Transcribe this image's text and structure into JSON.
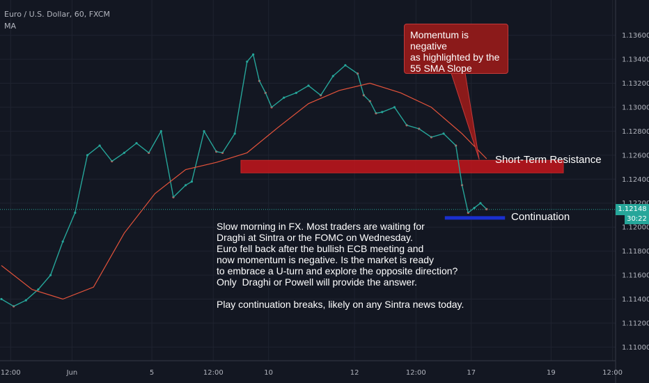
{
  "header": {
    "symbol": "Euro / U.S. Dollar, 60, FXCM",
    "indicator": "MA"
  },
  "current_price": "1.12148",
  "countdown": "30:22",
  "callout": {
    "line1": "Momentum is negative",
    "line2": "as highlighted by the",
    "line3": "55 SMA Slope"
  },
  "labels": {
    "resistance": "Short-Term Resistance",
    "continuation": "Continuation"
  },
  "commentary": "Slow morning in FX. Most traders are waiting for\nDraghi at Sintra or the FOMC on Wednesday.\nEuro fell back after the bullish ECB meeting and\nnow momentum is negative. Is the market is ready\nto embrace a U-turn and explore the opposite direction?\nOnly  Draghi or Powell will provide the answer.\n\nPlay continuation breaks, likely on any Sintra news today.",
  "colors": {
    "up": "#26a69a",
    "down": "#ef5350",
    "ma": "#e5533b",
    "resistance": "#c4151c",
    "continuation": "#1a2fcf",
    "background": "#131722"
  },
  "chart_data": {
    "type": "line",
    "title": "Euro / U.S. Dollar, 60, FXCM",
    "ylim": [
      1.1095,
      1.1372
    ],
    "yticks": [
      "1.13600",
      "1.13400",
      "1.13200",
      "1.13000",
      "1.12800",
      "1.12600",
      "1.12400",
      "1.12200",
      "1.12000",
      "1.11800",
      "1.11600",
      "1.11400",
      "1.11200",
      "1.11000"
    ],
    "xticks": [
      "12:00",
      "Jun",
      "5",
      "12:00",
      "10",
      "12",
      "12:00",
      "17",
      "19",
      "12:00"
    ],
    "xlim": [
      0,
      100
    ],
    "xtick_positions": [
      1.5,
      11.5,
      24.5,
      34.5,
      43.5,
      57.5,
      67.5,
      76.5,
      89.5,
      99.5
    ],
    "price_series": {
      "name": "EURUSD",
      "x": [
        0,
        2,
        4,
        6,
        8,
        10,
        12,
        14,
        16,
        18,
        20,
        22,
        24,
        26,
        28,
        30,
        31,
        33,
        35,
        36,
        38,
        40,
        41,
        42,
        43,
        44,
        46,
        48,
        50,
        52,
        54,
        56,
        58,
        59,
        60,
        61,
        62,
        64,
        66,
        68,
        70,
        72,
        74,
        75,
        76,
        77,
        78,
        79
      ],
      "y": [
        1.114,
        1.1134,
        1.1139,
        1.1148,
        1.116,
        1.1188,
        1.1212,
        1.126,
        1.1268,
        1.1255,
        1.1262,
        1.127,
        1.1262,
        1.128,
        1.1225,
        1.1235,
        1.1238,
        1.128,
        1.1263,
        1.1262,
        1.1278,
        1.1338,
        1.1344,
        1.1322,
        1.1312,
        1.13,
        1.1308,
        1.1312,
        1.1318,
        1.131,
        1.1326,
        1.1335,
        1.1328,
        1.131,
        1.1305,
        1.1295,
        1.1296,
        1.13,
        1.1285,
        1.1282,
        1.1275,
        1.1278,
        1.1268,
        1.1235,
        1.1212,
        1.1216,
        1.122,
        1.1215
      ]
    },
    "ma_series": {
      "name": "MA",
      "x": [
        0,
        5,
        10,
        15,
        20,
        25,
        30,
        35,
        40,
        45,
        50,
        55,
        60,
        65,
        70,
        75,
        79
      ],
      "y": [
        1.1168,
        1.1148,
        1.114,
        1.115,
        1.1195,
        1.1228,
        1.1248,
        1.1254,
        1.1262,
        1.1283,
        1.1303,
        1.1314,
        1.132,
        1.1312,
        1.13,
        1.1278,
        1.1257
      ]
    },
    "resistance_zone": [
      1.1247,
      1.1254
    ],
    "continuation_level": 1.1208,
    "current_price": 1.12148
  }
}
